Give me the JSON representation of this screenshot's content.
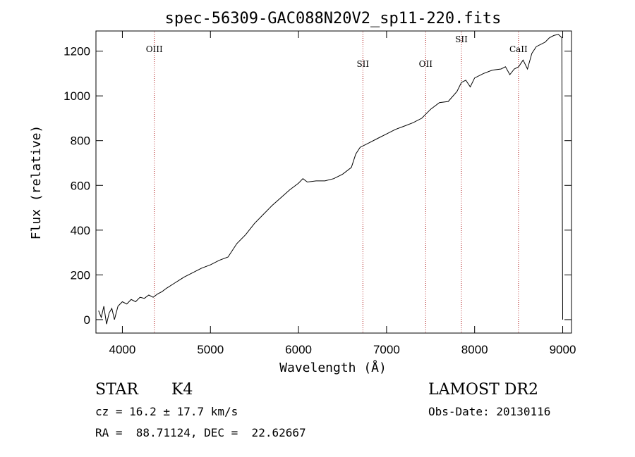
{
  "chart_data": {
    "type": "line",
    "title": "spec-56309-GAC088N20V2_sp11-220.fits",
    "xlabel": "Wavelength (Å)",
    "ylabel": "Flux (relative)",
    "xlim": [
      3700,
      9100
    ],
    "ylim": [
      -60,
      1290
    ],
    "xticks": [
      4000,
      5000,
      6000,
      7000,
      8000,
      9000
    ],
    "yticks": [
      0,
      200,
      400,
      600,
      800,
      1000,
      1200
    ],
    "grid": false,
    "line_color": "#000000",
    "marker_color": "#b22222",
    "series": [
      {
        "x": [
          3730,
          3760,
          3790,
          3820,
          3850,
          3880,
          3910,
          3950,
          4000,
          4050,
          4100,
          4150,
          4200,
          4250,
          4300,
          4350,
          4400,
          4450,
          4500,
          4600,
          4700,
          4800,
          4900,
          5000,
          5100,
          5200,
          5300,
          5400,
          5500,
          5600,
          5700,
          5800,
          5900,
          6000,
          6050,
          6100,
          6200,
          6300,
          6400,
          6500,
          6600,
          6650,
          6700,
          6800,
          6900,
          7000,
          7100,
          7200,
          7300,
          7400,
          7500,
          7600,
          7700,
          7800,
          7850,
          7900,
          7950,
          8000,
          8100,
          8200,
          8300,
          8350,
          8400,
          8450,
          8500,
          8550,
          8600,
          8650,
          8700,
          8750,
          8800,
          8850,
          8900,
          8950,
          8990,
          9000
        ],
        "y": [
          40,
          10,
          60,
          -20,
          30,
          50,
          0,
          60,
          80,
          70,
          90,
          80,
          100,
          95,
          110,
          100,
          115,
          125,
          140,
          165,
          190,
          210,
          230,
          245,
          265,
          280,
          340,
          380,
          430,
          470,
          510,
          545,
          580,
          610,
          630,
          615,
          620,
          620,
          630,
          650,
          680,
          740,
          770,
          790,
          810,
          830,
          850,
          865,
          880,
          900,
          940,
          970,
          975,
          1020,
          1060,
          1070,
          1040,
          1080,
          1100,
          1115,
          1120,
          1130,
          1095,
          1120,
          1130,
          1160,
          1120,
          1190,
          1220,
          1230,
          1240,
          1260,
          1270,
          1275,
          1260,
          0
        ]
      }
    ],
    "emission_lines": [
      {
        "label": "OIII",
        "x": 4363,
        "label_y": 1195
      },
      {
        "label": "SII",
        "x": 6731,
        "label_y": 1130
      },
      {
        "label": "OII",
        "x": 7444,
        "label_y": 1130
      },
      {
        "label": "SII",
        "x": 7850,
        "label_y": 1240
      },
      {
        "label": "CaII",
        "x": 8498,
        "label_y": 1195
      }
    ]
  },
  "footer": {
    "class_line": {
      "cls": "STAR",
      "subclass": "K4"
    },
    "survey": "LAMOST DR2",
    "cz": "cz = 16.2 ± 17.7 km/s",
    "obs_date": "Obs-Date: 20130116",
    "coords": "RA =  88.71124, DEC =  22.62667"
  }
}
